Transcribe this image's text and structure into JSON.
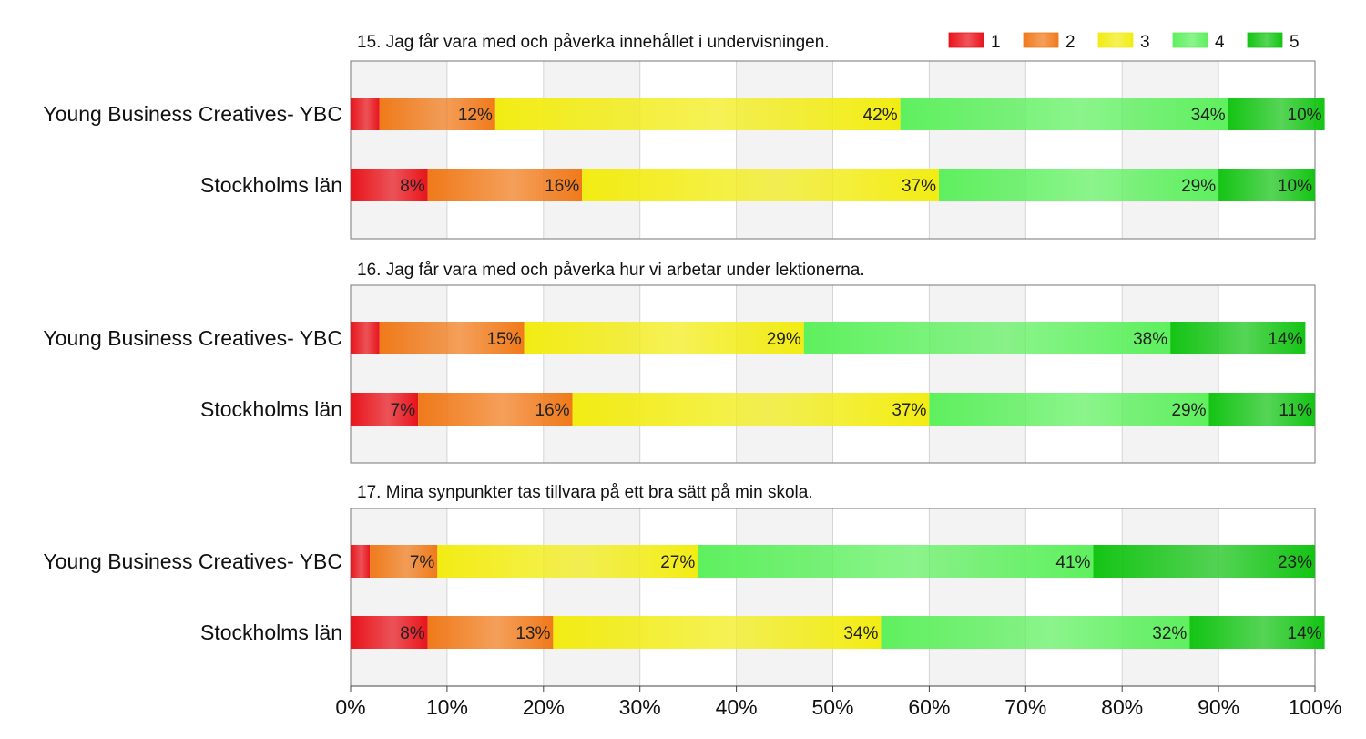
{
  "legend": [
    {
      "label": "1",
      "color": "#e8141b"
    },
    {
      "label": "2",
      "color": "#f07a1a"
    },
    {
      "label": "3",
      "color": "#f2ec14"
    },
    {
      "label": "4",
      "color": "#5ef05e"
    },
    {
      "label": "5",
      "color": "#14c414"
    }
  ],
  "x_ticks": [
    "0%",
    "10%",
    "20%",
    "30%",
    "40%",
    "50%",
    "60%",
    "70%",
    "80%",
    "90%",
    "100%"
  ],
  "chart_data": [
    {
      "type": "bar",
      "orientation": "horizontal-stacked",
      "title": "15. Jag får vara med och påverka innehållet i undervisningen.",
      "categories": [
        "Young Business Creatives- YBC",
        "Stockholms län"
      ],
      "series": [
        {
          "name": "1",
          "values": [
            3,
            8
          ],
          "labels": [
            "",
            "8%"
          ]
        },
        {
          "name": "2",
          "values": [
            12,
            16
          ],
          "labels": [
            "12%",
            "16%"
          ]
        },
        {
          "name": "3",
          "values": [
            42,
            37
          ],
          "labels": [
            "42%",
            "37%"
          ]
        },
        {
          "name": "4",
          "values": [
            34,
            29
          ],
          "labels": [
            "34%",
            "29%"
          ]
        },
        {
          "name": "5",
          "values": [
            10,
            10
          ],
          "labels": [
            "10%",
            "10%"
          ]
        }
      ],
      "xlim": [
        0,
        100
      ]
    },
    {
      "type": "bar",
      "orientation": "horizontal-stacked",
      "title": "16. Jag får vara med och påverka hur vi arbetar under lektionerna.",
      "categories": [
        "Young Business Creatives- YBC",
        "Stockholms län"
      ],
      "series": [
        {
          "name": "1",
          "values": [
            3,
            7
          ],
          "labels": [
            "",
            "7%"
          ]
        },
        {
          "name": "2",
          "values": [
            15,
            16
          ],
          "labels": [
            "15%",
            "16%"
          ]
        },
        {
          "name": "3",
          "values": [
            29,
            37
          ],
          "labels": [
            "29%",
            "37%"
          ]
        },
        {
          "name": "4",
          "values": [
            38,
            29
          ],
          "labels": [
            "38%",
            "29%"
          ]
        },
        {
          "name": "5",
          "values": [
            14,
            11
          ],
          "labels": [
            "14%",
            "11%"
          ]
        }
      ],
      "xlim": [
        0,
        100
      ]
    },
    {
      "type": "bar",
      "orientation": "horizontal-stacked",
      "title": "17. Mina synpunkter tas tillvara på ett bra sätt på min skola.",
      "categories": [
        "Young Business Creatives- YBC",
        "Stockholms län"
      ],
      "series": [
        {
          "name": "1",
          "values": [
            2,
            8
          ],
          "labels": [
            "",
            "8%"
          ]
        },
        {
          "name": "2",
          "values": [
            7,
            13
          ],
          "labels": [
            "7%",
            "13%"
          ]
        },
        {
          "name": "3",
          "values": [
            27,
            34
          ],
          "labels": [
            "27%",
            "34%"
          ]
        },
        {
          "name": "4",
          "values": [
            41,
            32
          ],
          "labels": [
            "41%",
            "32%"
          ]
        },
        {
          "name": "5",
          "values": [
            23,
            14
          ],
          "labels": [
            "23%",
            "14%"
          ]
        }
      ],
      "xlim": [
        0,
        100
      ]
    }
  ]
}
